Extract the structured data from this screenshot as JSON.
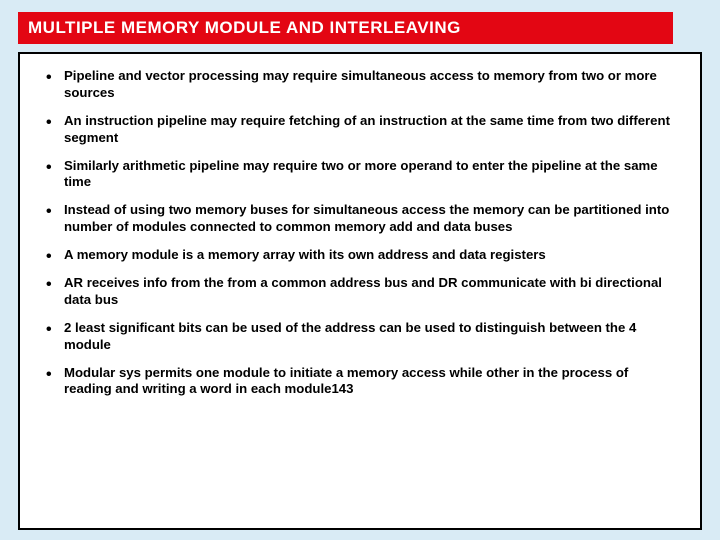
{
  "title": "MULTIPLE MEMORY MODULE AND INTERLEAVING",
  "bullets": [
    "Pipeline and vector processing may require simultaneous access to memory from two or more sources",
    "An instruction pipeline may require fetching of an instruction at the same time from two different segment",
    "Similarly arithmetic pipeline may require two or more operand to enter  the pipeline at the same time",
    "Instead of using two memory buses for simultaneous access the memory can be partitioned into number of modules connected to common  memory add and data buses",
    "A memory module is a memory array with its own address and data registers",
    "AR receives info from the from a common address bus and DR communicate with bi directional data bus",
    "2 least significant bits can be used of the address can be used to distinguish between the 4 module",
    "Modular sys permits one module to initiate a memory access while other in the process of reading and writing a word in each module143"
  ],
  "colors": {
    "page_bg": "#d9ebf5",
    "title_bg": "#e30613",
    "title_fg": "#ffffff",
    "box_bg": "#ffffff",
    "box_border": "#000000",
    "text": "#000000"
  }
}
